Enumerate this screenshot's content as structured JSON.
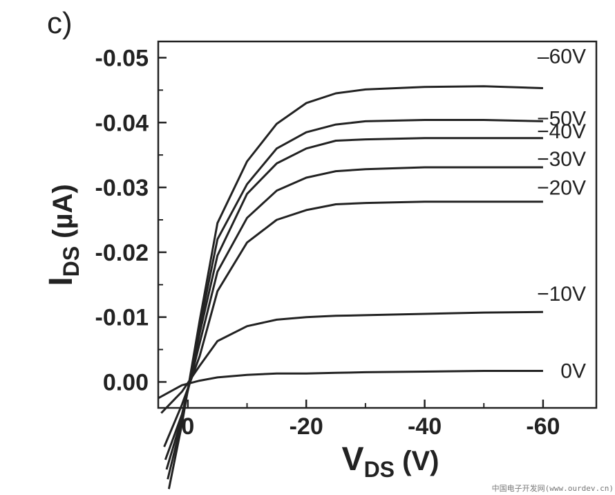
{
  "panel_label": "c)",
  "watermark": "中国电子开发网(www.ourdev.cn)",
  "chart_data": {
    "type": "line",
    "title": "",
    "xlabel": "V",
    "xlabel_sub": "DS",
    "xlabel_unit": " (V)",
    "ylabel": "I",
    "ylabel_sub": "DS",
    "ylabel_unit": " (µA)",
    "xlim": [
      5,
      -69
    ],
    "ylim": [
      0.004,
      -0.0525
    ],
    "x_ticks": [
      0,
      -20,
      -40,
      -60
    ],
    "x_tick_labels": [
      "0",
      "-20",
      "-40",
      "-60"
    ],
    "y_ticks": [
      0.0,
      -0.01,
      -0.02,
      -0.03,
      -0.04,
      -0.05
    ],
    "y_tick_labels": [
      "0.00",
      "-0.01",
      "-0.02",
      "-0.03",
      "-0.04",
      "-0.05"
    ],
    "grid": false,
    "legend": "none",
    "series": [
      {
        "name": "0V",
        "label": "0V",
        "x": [
          5,
          1,
          -2,
          -5,
          -10,
          -15,
          -20,
          -25,
          -30,
          -40,
          -50,
          -60
        ],
        "y": [
          0.0025,
          0.0005,
          -0.0002,
          -0.0007,
          -0.0011,
          -0.0013,
          -0.0013,
          -0.0014,
          -0.0015,
          -0.0016,
          -0.0017,
          -0.0017
        ]
      },
      {
        "name": "-10V",
        "label": "−10V",
        "x": [
          4.5,
          1,
          -2,
          -5,
          -10,
          -15,
          -20,
          -25,
          -30,
          -40,
          -50,
          -60
        ],
        "y": [
          0.0048,
          0.0015,
          -0.0025,
          -0.0063,
          -0.0086,
          -0.0096,
          -0.01,
          -0.0102,
          -0.0103,
          -0.0105,
          -0.0107,
          -0.0108
        ]
      },
      {
        "name": "-20V",
        "label": "−20V",
        "x": [
          4,
          1,
          -2,
          -5,
          -10,
          -15,
          -20,
          -25,
          -30,
          -40,
          -50,
          -60
        ],
        "y": [
          0.01,
          0.0035,
          -0.004,
          -0.014,
          -0.0215,
          -0.025,
          -0.0265,
          -0.0274,
          -0.0276,
          -0.0278,
          -0.0278,
          -0.0278
        ]
      },
      {
        "name": "-30V",
        "label": "−30V",
        "x": [
          3.8,
          1,
          -2,
          -5,
          -10,
          -15,
          -20,
          -25,
          -30,
          -40,
          -50,
          -60
        ],
        "y": [
          0.012,
          0.005,
          -0.006,
          -0.017,
          -0.0253,
          -0.0295,
          -0.0315,
          -0.0325,
          -0.0328,
          -0.0331,
          -0.0331,
          -0.0331
        ]
      },
      {
        "name": "-40V",
        "label": "−40V",
        "x": [
          3.6,
          1,
          -2,
          -5,
          -10,
          -15,
          -20,
          -25,
          -30,
          -40,
          -50,
          -60
        ],
        "y": [
          0.0135,
          0.0055,
          -0.0075,
          -0.0195,
          -0.029,
          -0.0337,
          -0.036,
          -0.0372,
          -0.0374,
          -0.0376,
          -0.0376,
          -0.0376
        ]
      },
      {
        "name": "-50V",
        "label": "−50V",
        "x": [
          3.4,
          1,
          -2,
          -5,
          -10,
          -15,
          -20,
          -25,
          -30,
          -40,
          -50,
          -60
        ],
        "y": [
          0.015,
          0.006,
          -0.0085,
          -0.022,
          -0.0305,
          -0.036,
          -0.0385,
          -0.0397,
          -0.0402,
          -0.0404,
          -0.0404,
          -0.0402
        ]
      },
      {
        "name": "-60V",
        "label": "–60V",
        "x": [
          3.2,
          1,
          -2,
          -5,
          -10,
          -15,
          -20,
          -25,
          -30,
          -40,
          -50,
          -60
        ],
        "y": [
          0.0165,
          0.0065,
          -0.0095,
          -0.0245,
          -0.034,
          -0.0398,
          -0.043,
          -0.0445,
          -0.0451,
          -0.0455,
          -0.0456,
          -0.0453
        ]
      }
    ],
    "label_positions_note": ""
  }
}
